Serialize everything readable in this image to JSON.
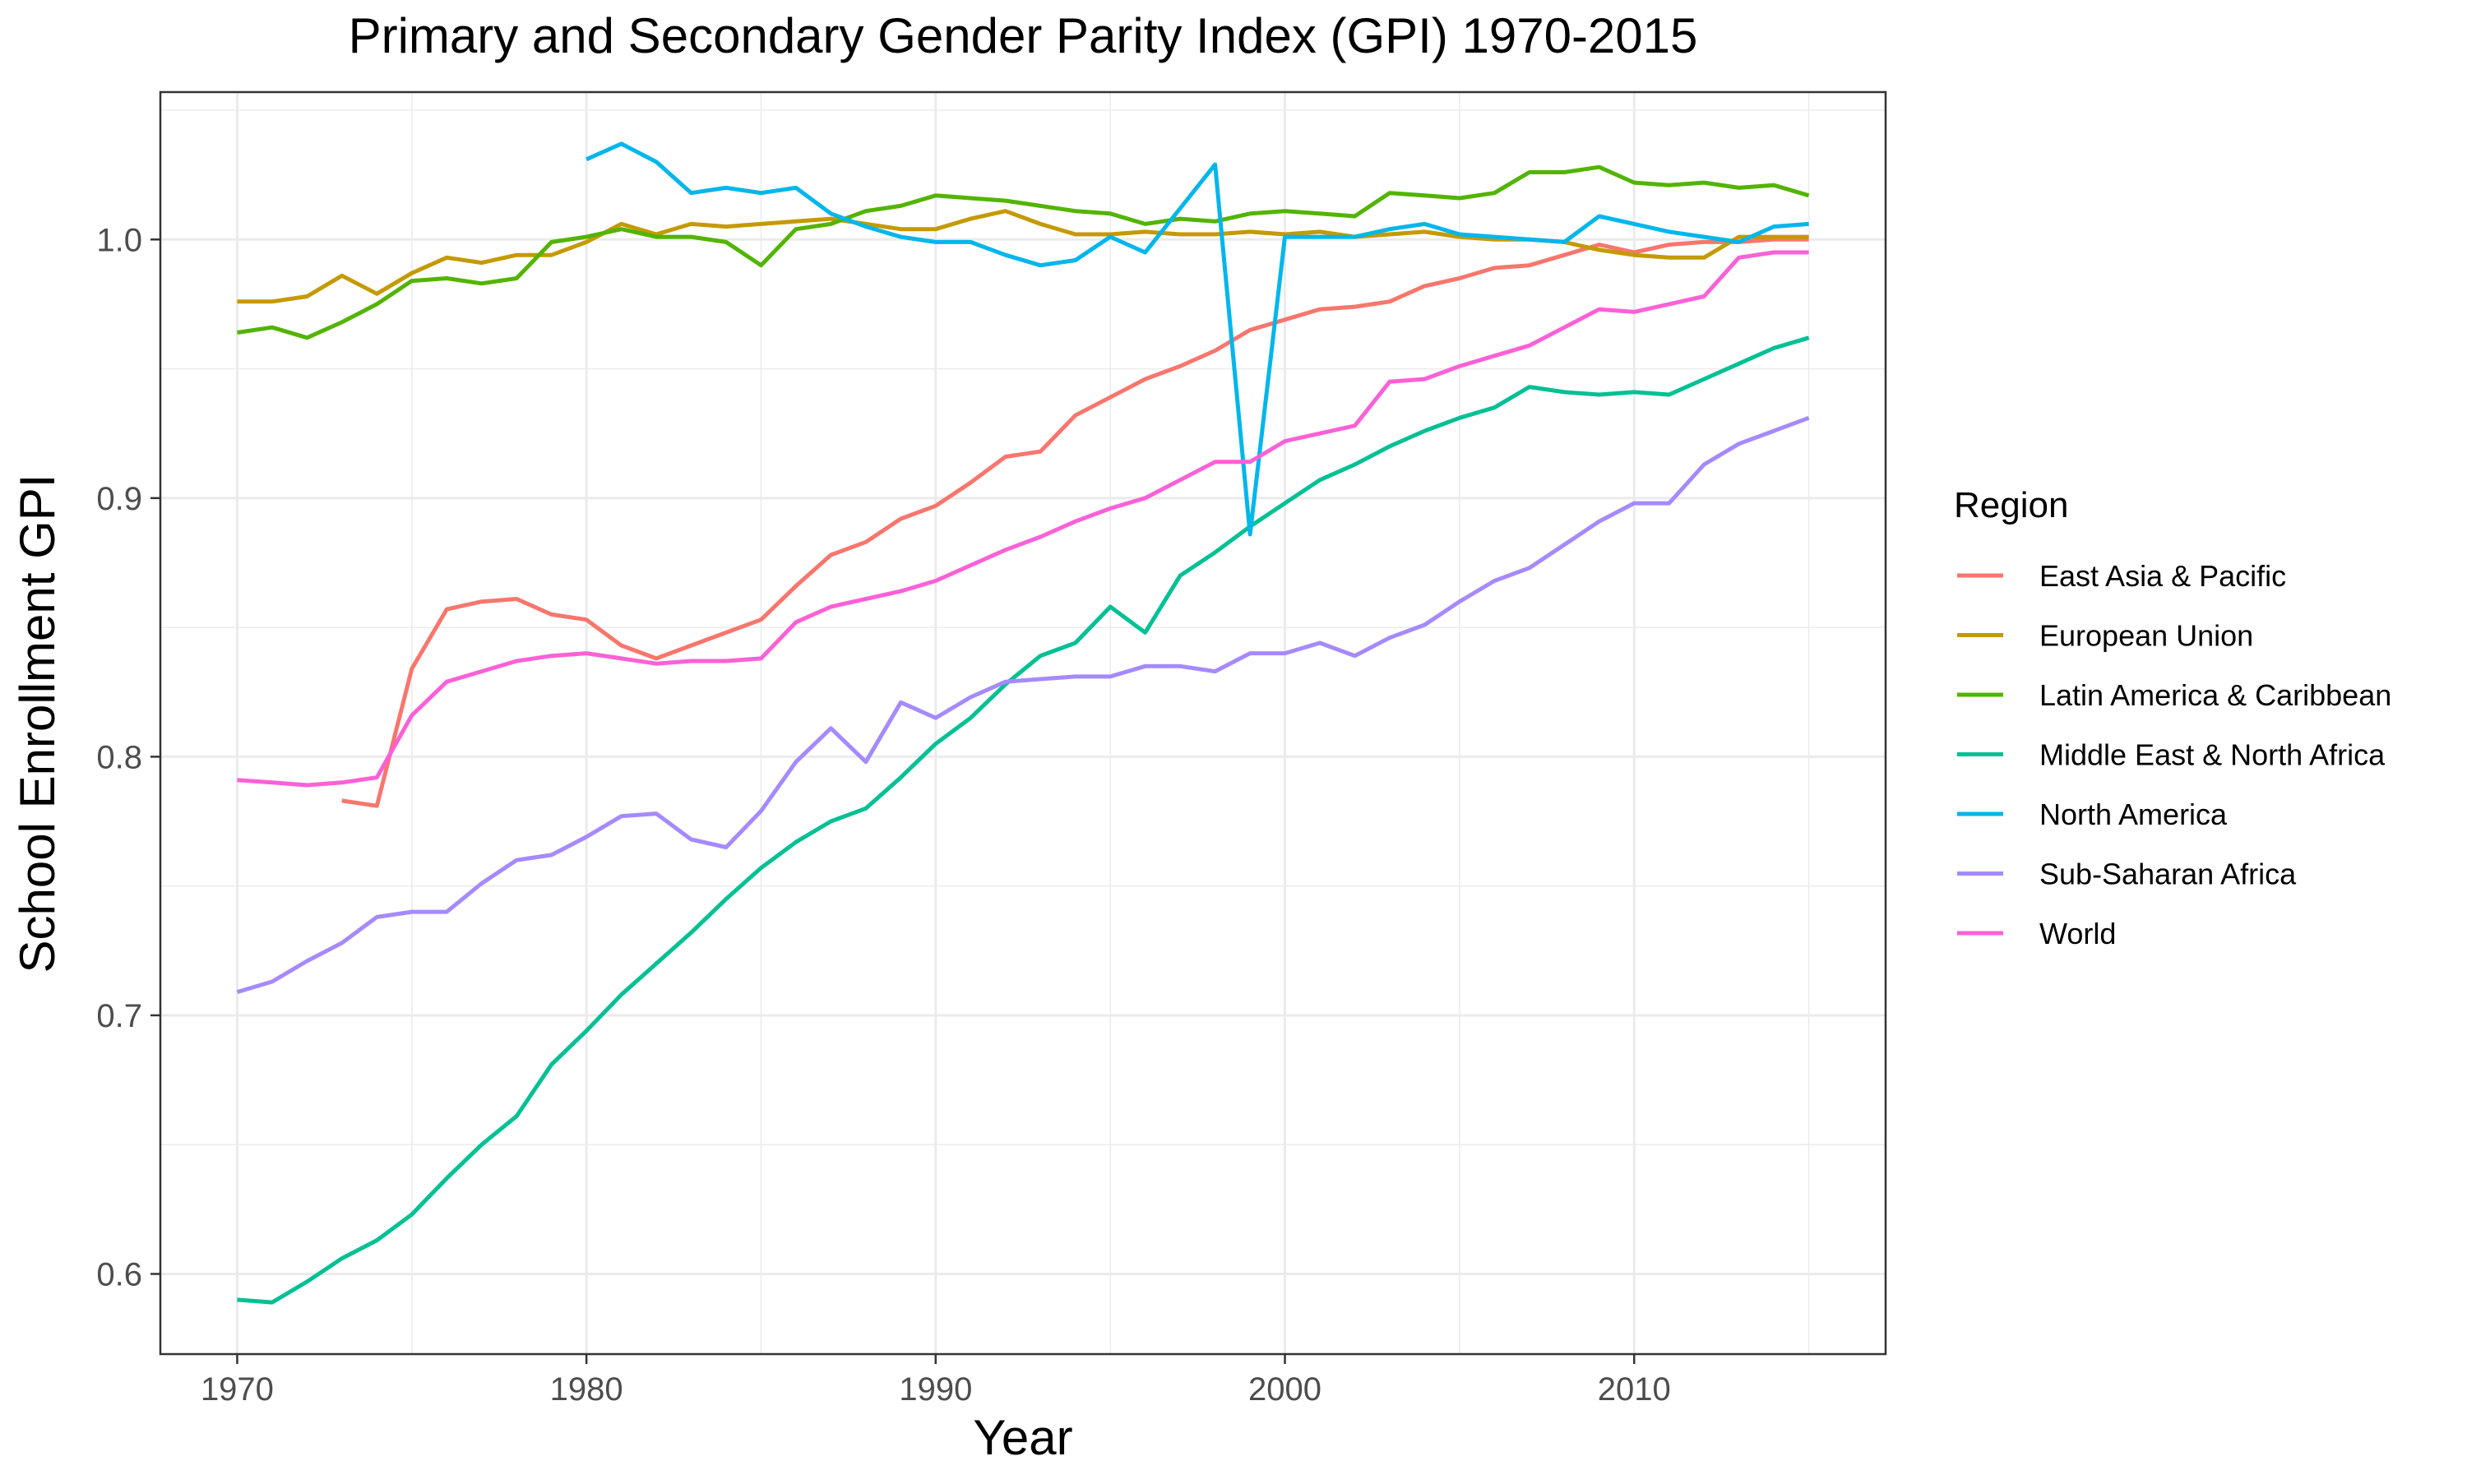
{
  "chart_data": {
    "type": "line",
    "title": "Primary and Secondary Gender Parity Index (GPI) 1970-2015",
    "xlabel": "Year",
    "ylabel": "School Enrollment GPI",
    "xlim": [
      1967.8,
      2017.2
    ],
    "ylim": [
      0.569,
      1.057
    ],
    "x_ticks": [
      1970,
      1980,
      1990,
      2000,
      2010
    ],
    "y_ticks": [
      0.6,
      0.7,
      0.8,
      0.9,
      1.0
    ],
    "y_tick_labels": [
      "0.6",
      "0.7",
      "0.8",
      "0.9",
      "1.0"
    ],
    "grid": true,
    "legend": {
      "title": "Region",
      "position": "right"
    },
    "series": [
      {
        "name": "East Asia & Pacific",
        "color": "#F8766D",
        "x": [
          1973,
          1974,
          1975,
          1976,
          1977,
          1978,
          1979,
          1980,
          1981,
          1982,
          1983,
          1984,
          1985,
          1986,
          1987,
          1988,
          1989,
          1990,
          1991,
          1992,
          1993,
          1994,
          1995,
          1996,
          1997,
          1998,
          1999,
          2000,
          2001,
          2002,
          2003,
          2004,
          2005,
          2006,
          2007,
          2008,
          2009,
          2010,
          2011,
          2012,
          2013,
          2014,
          2015
        ],
        "values": [
          0.783,
          0.781,
          0.834,
          0.857,
          0.86,
          0.861,
          0.855,
          0.853,
          0.843,
          0.838,
          0.843,
          0.848,
          0.853,
          0.866,
          0.878,
          0.883,
          0.892,
          0.897,
          0.906,
          0.916,
          0.918,
          0.932,
          0.939,
          0.946,
          0.951,
          0.957,
          0.965,
          0.969,
          0.973,
          0.974,
          0.976,
          0.982,
          0.985,
          0.989,
          0.99,
          0.994,
          0.998,
          0.995,
          0.998,
          0.999,
          0.999,
          1.0,
          1.0
        ]
      },
      {
        "name": "European Union",
        "color": "#C49A00",
        "x": [
          1970,
          1971,
          1972,
          1973,
          1974,
          1975,
          1976,
          1977,
          1978,
          1979,
          1980,
          1981,
          1982,
          1983,
          1984,
          1985,
          1986,
          1987,
          1988,
          1989,
          1990,
          1991,
          1992,
          1993,
          1994,
          1995,
          1996,
          1997,
          1998,
          1999,
          2000,
          2001,
          2002,
          2003,
          2004,
          2005,
          2006,
          2007,
          2008,
          2009,
          2010,
          2011,
          2012,
          2013,
          2014,
          2015
        ],
        "values": [
          0.976,
          0.976,
          0.978,
          0.986,
          0.979,
          0.987,
          0.993,
          0.991,
          0.994,
          0.994,
          0.999,
          1.006,
          1.002,
          1.006,
          1.005,
          1.006,
          1.007,
          1.008,
          1.006,
          1.004,
          1.004,
          1.008,
          1.011,
          1.006,
          1.002,
          1.002,
          1.003,
          1.002,
          1.002,
          1.003,
          1.002,
          1.003,
          1.001,
          1.002,
          1.003,
          1.001,
          1.0,
          1.0,
          0.999,
          0.996,
          0.994,
          0.993,
          0.993,
          1.001,
          1.001,
          1.001
        ]
      },
      {
        "name": "Latin America & Caribbean",
        "color": "#53B400",
        "x": [
          1970,
          1971,
          1972,
          1973,
          1974,
          1975,
          1976,
          1977,
          1978,
          1979,
          1980,
          1981,
          1982,
          1983,
          1984,
          1985,
          1986,
          1987,
          1988,
          1989,
          1990,
          1991,
          1992,
          1993,
          1994,
          1995,
          1996,
          1997,
          1998,
          1999,
          2000,
          2001,
          2002,
          2003,
          2004,
          2005,
          2006,
          2007,
          2008,
          2009,
          2010,
          2011,
          2012,
          2013,
          2014,
          2015
        ],
        "values": [
          0.964,
          0.966,
          0.962,
          0.968,
          0.975,
          0.984,
          0.985,
          0.983,
          0.985,
          0.999,
          1.001,
          1.004,
          1.001,
          1.001,
          0.999,
          0.99,
          1.004,
          1.006,
          1.011,
          1.013,
          1.017,
          1.016,
          1.015,
          1.013,
          1.011,
          1.01,
          1.006,
          1.008,
          1.007,
          1.01,
          1.011,
          1.01,
          1.009,
          1.018,
          1.017,
          1.016,
          1.018,
          1.026,
          1.026,
          1.028,
          1.022,
          1.021,
          1.022,
          1.02,
          1.021,
          1.017
        ]
      },
      {
        "name": "Middle East & North Africa",
        "color": "#00C094",
        "x": [
          1970,
          1971,
          1972,
          1973,
          1974,
          1975,
          1976,
          1977,
          1978,
          1979,
          1980,
          1981,
          1982,
          1983,
          1984,
          1985,
          1986,
          1987,
          1988,
          1989,
          1990,
          1991,
          1992,
          1993,
          1994,
          1995,
          1996,
          1997,
          1998,
          1999,
          2000,
          2001,
          2002,
          2003,
          2004,
          2005,
          2006,
          2007,
          2008,
          2009,
          2010,
          2011,
          2012,
          2013,
          2014,
          2015
        ],
        "values": [
          0.59,
          0.589,
          0.597,
          0.606,
          0.613,
          0.623,
          0.637,
          0.65,
          0.661,
          0.681,
          0.694,
          0.708,
          0.72,
          0.732,
          0.745,
          0.757,
          0.767,
          0.775,
          0.78,
          0.792,
          0.805,
          0.815,
          0.828,
          0.839,
          0.844,
          0.858,
          0.848,
          0.87,
          0.879,
          0.889,
          0.898,
          0.907,
          0.913,
          0.92,
          0.926,
          0.931,
          0.935,
          0.943,
          0.941,
          0.94,
          0.941,
          0.94,
          0.946,
          0.952,
          0.958,
          0.962
        ]
      },
      {
        "name": "North America",
        "color": "#00B6EB",
        "x": [
          1980,
          1981,
          1982,
          1983,
          1984,
          1985,
          1986,
          1987,
          1988,
          1989,
          1990,
          1991,
          1992,
          1993,
          1994,
          1995,
          1996,
          1997,
          1998,
          1999,
          2000,
          2001,
          2002,
          2003,
          2004,
          2005,
          2006,
          2007,
          2008,
          2009,
          2010,
          2011,
          2012,
          2013,
          2014,
          2015
        ],
        "values": [
          1.031,
          1.037,
          1.03,
          1.018,
          1.02,
          1.018,
          1.02,
          1.01,
          1.005,
          1.001,
          0.999,
          0.999,
          0.994,
          0.99,
          0.992,
          1.001,
          0.995,
          1.012,
          1.029,
          0.886,
          1.001,
          1.001,
          1.001,
          1.004,
          1.006,
          1.002,
          1.001,
          1.0,
          0.999,
          1.009,
          1.006,
          1.003,
          1.001,
          0.999,
          1.005,
          1.006
        ]
      },
      {
        "name": "Sub-Saharan Africa",
        "color": "#A58AFF",
        "x": [
          1970,
          1971,
          1972,
          1973,
          1974,
          1975,
          1976,
          1977,
          1978,
          1979,
          1980,
          1981,
          1982,
          1983,
          1984,
          1985,
          1986,
          1987,
          1988,
          1989,
          1990,
          1991,
          1992,
          1993,
          1994,
          1995,
          1996,
          1997,
          1998,
          1999,
          2000,
          2001,
          2002,
          2003,
          2004,
          2005,
          2006,
          2007,
          2008,
          2009,
          2010,
          2011,
          2012,
          2013,
          2014,
          2015
        ],
        "values": [
          0.709,
          0.713,
          0.721,
          0.728,
          0.738,
          0.74,
          0.74,
          0.751,
          0.76,
          0.762,
          0.769,
          0.777,
          0.778,
          0.768,
          0.765,
          0.779,
          0.798,
          0.811,
          0.798,
          0.821,
          0.815,
          0.823,
          0.829,
          0.83,
          0.831,
          0.831,
          0.835,
          0.835,
          0.833,
          0.84,
          0.84,
          0.844,
          0.839,
          0.846,
          0.851,
          0.86,
          0.868,
          0.873,
          0.882,
          0.891,
          0.898,
          0.898,
          0.913,
          0.921,
          0.926,
          0.931
        ]
      },
      {
        "name": "World",
        "color": "#FB61D7",
        "x": [
          1970,
          1971,
          1972,
          1973,
          1974,
          1975,
          1976,
          1977,
          1978,
          1979,
          1980,
          1981,
          1982,
          1983,
          1984,
          1985,
          1986,
          1987,
          1988,
          1989,
          1990,
          1991,
          1992,
          1993,
          1994,
          1995,
          1996,
          1997,
          1998,
          1999,
          2000,
          2001,
          2002,
          2003,
          2004,
          2005,
          2006,
          2007,
          2008,
          2009,
          2010,
          2011,
          2012,
          2013,
          2014,
          2015
        ],
        "values": [
          0.791,
          0.79,
          0.789,
          0.79,
          0.792,
          0.816,
          0.829,
          0.833,
          0.837,
          0.839,
          0.84,
          0.838,
          0.836,
          0.837,
          0.837,
          0.838,
          0.852,
          0.858,
          0.861,
          0.864,
          0.868,
          0.874,
          0.88,
          0.885,
          0.891,
          0.896,
          0.9,
          0.907,
          0.914,
          0.914,
          0.922,
          0.925,
          0.928,
          0.945,
          0.946,
          0.951,
          0.955,
          0.959,
          0.966,
          0.973,
          0.972,
          0.975,
          0.978,
          0.993,
          0.995,
          0.995
        ]
      }
    ]
  }
}
